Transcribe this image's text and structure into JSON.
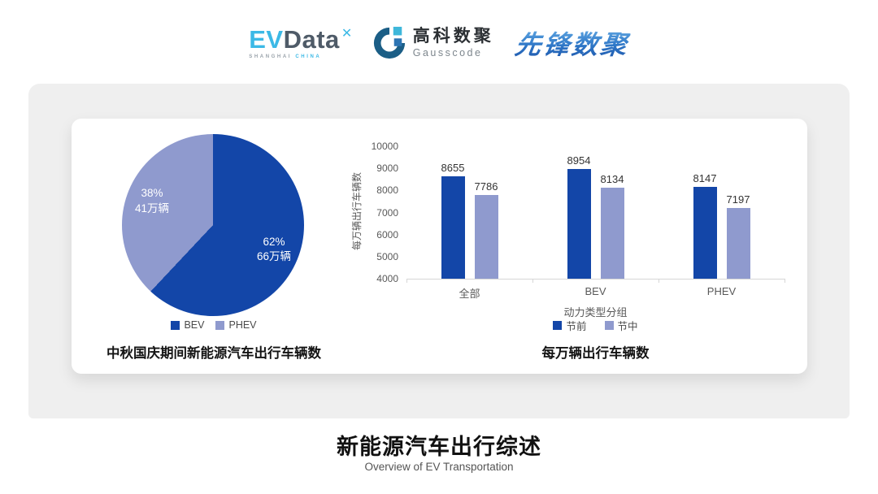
{
  "header": {
    "evdata": {
      "ev": "EV",
      "data": "Data",
      "x_mark": "✕",
      "sub_shanghai": "SHANGHAI",
      "sub_china": "CHINA"
    },
    "gausscode": {
      "cn": "高科数聚",
      "en": "Gausscode"
    },
    "xianfeng": {
      "text": "先锋数聚"
    }
  },
  "colors": {
    "series_dark": "#1346a8",
    "series_light": "#8f9ace",
    "panel_gray": "#efefef",
    "axis_text": "#595959"
  },
  "chart_data": [
    {
      "type": "pie",
      "title": "中秋国庆期间新能源汽车出行车辆数",
      "start_angle": "top",
      "direction": "clockwise",
      "slices": [
        {
          "label": "BEV",
          "pct": 62,
          "pct_label": "62%",
          "value_label": "66万辆",
          "color": "#1346a8",
          "text_color": "#ffffff"
        },
        {
          "label": "PHEV",
          "pct": 38,
          "pct_label": "38%",
          "value_label": "41万辆",
          "color": "#8f9ace",
          "text_color": "#ffffff"
        }
      ],
      "legend": [
        "BEV",
        "PHEV"
      ],
      "legend_position": "bottom"
    },
    {
      "type": "bar",
      "title": "每万辆出行车辆数",
      "ylabel": "每万辆出行车辆数",
      "xlabel": "动力类型分组",
      "categories": [
        "全部",
        "BEV",
        "PHEV"
      ],
      "series": [
        {
          "name": "节前",
          "color": "#1346a8",
          "values": [
            8655,
            8954,
            8147
          ]
        },
        {
          "name": "节中",
          "color": "#8f9ace",
          "values": [
            7786,
            8134,
            7197
          ]
        }
      ],
      "ylim": [
        4000,
        10000
      ],
      "ytick_step": 1000,
      "grid": false,
      "legend_position": "bottom"
    }
  ],
  "footer": {
    "title": "新能源汽车出行综述",
    "subtitle": "Overview of EV Transportation"
  }
}
